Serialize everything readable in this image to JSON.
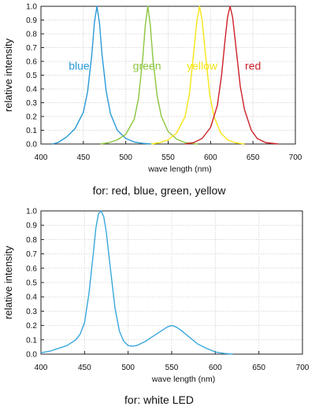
{
  "chart_data": [
    {
      "type": "line",
      "caption": "for: red, blue, green, yellow",
      "xlabel": "wave length (nm)",
      "ylabel": "relative intensity",
      "xlim": [
        400,
        700
      ],
      "ylim": [
        0,
        1.0
      ],
      "xticks": [
        "400",
        "450",
        "500",
        "550",
        "600",
        "650",
        "700"
      ],
      "yticks": [
        "0.0",
        "0.1",
        "0.2",
        "0.3",
        "0.4",
        "0.5",
        "0.6",
        "0.7",
        "0.8",
        "0.9",
        "1.0"
      ],
      "grid": true,
      "series": [
        {
          "name": "blue",
          "color": "#2a9ad6",
          "label_x": 445,
          "label_y": 0.54,
          "x": [
            413,
            420,
            430,
            440,
            450,
            455,
            460,
            463,
            466,
            469,
            472,
            477,
            482,
            490,
            500,
            510,
            520,
            530
          ],
          "y": [
            0.0,
            0.01,
            0.05,
            0.11,
            0.23,
            0.38,
            0.65,
            0.88,
            1.0,
            0.88,
            0.65,
            0.38,
            0.22,
            0.1,
            0.04,
            0.015,
            0.005,
            0.0
          ]
        },
        {
          "name": "green",
          "color": "#8cc63e",
          "label_x": 525,
          "label_y": 0.54,
          "x": [
            470,
            480,
            490,
            500,
            510,
            515,
            520,
            523,
            526,
            529,
            532,
            537,
            542,
            550,
            560,
            570,
            580,
            585
          ],
          "y": [
            0.0,
            0.01,
            0.03,
            0.07,
            0.18,
            0.33,
            0.62,
            0.86,
            1.0,
            0.86,
            0.62,
            0.35,
            0.2,
            0.09,
            0.035,
            0.01,
            0.003,
            0.0
          ]
        },
        {
          "name": "yellow",
          "color": "#f7e516",
          "label_x": 590,
          "label_y": 0.54,
          "x": [
            530,
            540,
            550,
            560,
            570,
            575,
            580,
            584,
            587,
            590,
            594,
            599,
            604,
            612,
            620,
            630,
            640
          ],
          "y": [
            0.0,
            0.01,
            0.03,
            0.08,
            0.2,
            0.36,
            0.66,
            0.9,
            1.0,
            0.9,
            0.65,
            0.36,
            0.2,
            0.08,
            0.03,
            0.008,
            0.0
          ]
        },
        {
          "name": "red",
          "color": "#cc2229",
          "label_x": 650,
          "label_y": 0.54,
          "x": [
            570,
            580,
            590,
            600,
            608,
            613,
            617,
            620,
            623,
            626,
            630,
            635,
            640,
            648,
            655,
            665,
            680
          ],
          "y": [
            0.0,
            0.01,
            0.04,
            0.12,
            0.28,
            0.5,
            0.75,
            0.92,
            1.0,
            0.92,
            0.7,
            0.42,
            0.25,
            0.1,
            0.04,
            0.01,
            0.0
          ]
        }
      ]
    },
    {
      "type": "line",
      "caption": "for: white LED",
      "xlabel": "wave length (nm)",
      "ylabel": "relative intensity",
      "xlim": [
        400,
        700
      ],
      "ylim": [
        0,
        1.0
      ],
      "xticks": [
        "400",
        "450",
        "500",
        "550",
        "600",
        "650",
        "700"
      ],
      "yticks": [
        "0.0",
        "0.1",
        "0.2",
        "0.3",
        "0.4",
        "0.5",
        "0.6",
        "0.7",
        "0.8",
        "0.9",
        "1.0"
      ],
      "grid": true,
      "series": [
        {
          "color": "#3aa8dc",
          "x": [
            400,
            410,
            420,
            430,
            440,
            445,
            450,
            455,
            460,
            463,
            466,
            469,
            472,
            475,
            480,
            485,
            490,
            495,
            500,
            505,
            510,
            520,
            530,
            540,
            545,
            550,
            555,
            560,
            570,
            580,
            590,
            600,
            610,
            620
          ],
          "y": [
            0.01,
            0.02,
            0.04,
            0.06,
            0.1,
            0.14,
            0.22,
            0.42,
            0.7,
            0.88,
            0.98,
            1.0,
            0.96,
            0.85,
            0.58,
            0.32,
            0.16,
            0.09,
            0.06,
            0.055,
            0.06,
            0.09,
            0.13,
            0.17,
            0.19,
            0.2,
            0.19,
            0.17,
            0.12,
            0.07,
            0.04,
            0.015,
            0.005,
            0.0
          ]
        }
      ]
    }
  ]
}
